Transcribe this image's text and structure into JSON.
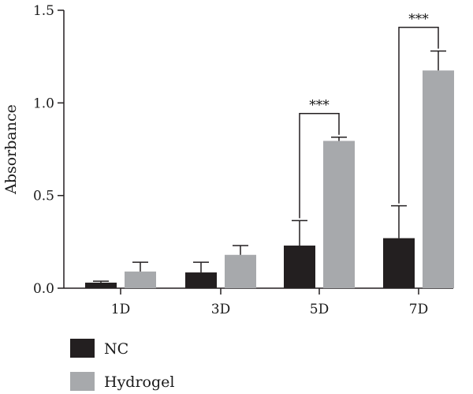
{
  "chart_data": {
    "type": "bar",
    "ylabel": "Absorbance",
    "xlabel": "",
    "ylim": [
      0,
      1.5
    ],
    "yticks": [
      "0.0",
      "0.5",
      "1.0",
      "1.5"
    ],
    "ytick_values": [
      0,
      0.5,
      1.0,
      1.5
    ],
    "categories": [
      "1D",
      "3D",
      "5D",
      "7D"
    ],
    "series": [
      {
        "name": "NC",
        "color": "#231f20",
        "values": [
          0.03,
          0.085,
          0.23,
          0.27
        ],
        "errors": [
          0.008,
          0.055,
          0.135,
          0.175
        ]
      },
      {
        "name": "Hydrogel",
        "color": "#a7a9ac",
        "values": [
          0.09,
          0.18,
          0.795,
          1.175
        ],
        "errors": [
          0.05,
          0.05,
          0.02,
          0.105
        ]
      }
    ],
    "significance": [
      {
        "category_index": 2,
        "label": "***"
      },
      {
        "category_index": 3,
        "label": "***"
      }
    ],
    "legend": {
      "placement": "bottom-left",
      "entries": [
        "NC",
        "Hydrogel"
      ]
    },
    "grid": false
  }
}
